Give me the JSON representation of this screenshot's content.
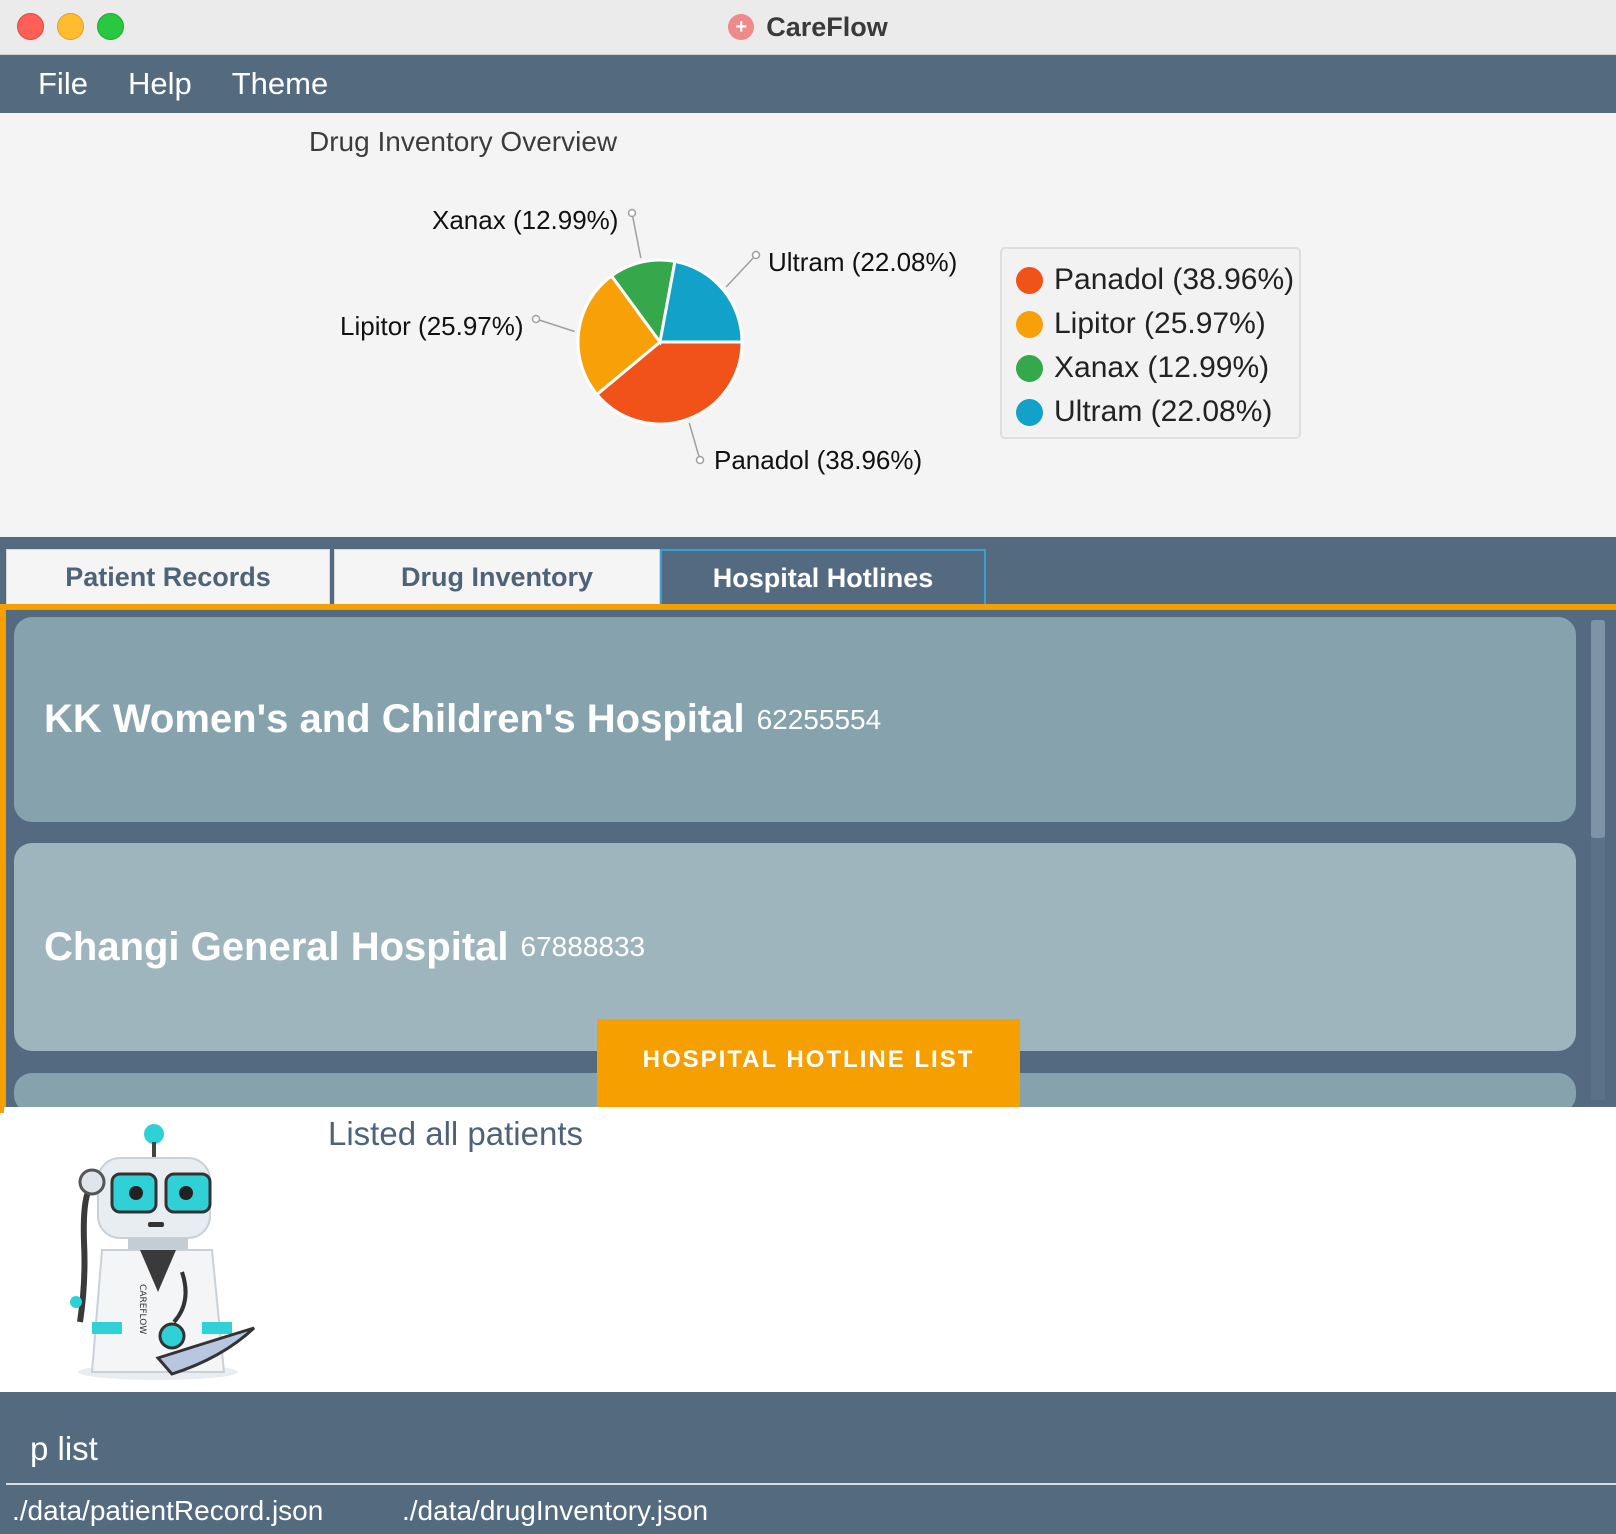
{
  "window": {
    "title": "CareFlow",
    "controls": [
      "close",
      "minimize",
      "maximize"
    ]
  },
  "menu": {
    "items": [
      "File",
      "Help",
      "Theme"
    ]
  },
  "chart_data": {
    "type": "pie",
    "title": "Drug Inventory Overview",
    "categories": [
      "Panadol",
      "Lipitor",
      "Xanax",
      "Ultram"
    ],
    "values": [
      38.96,
      25.97,
      12.99,
      22.08
    ],
    "unit": "%",
    "slice_labels": [
      "Panadol (38.96%)",
      "Lipitor (25.97%)",
      "Xanax (12.99%)",
      "Ultram (22.08%)"
    ],
    "colors": [
      "#f0521a",
      "#f8a008",
      "#34a84a",
      "#12a2c9"
    ],
    "legend": {
      "placement": "right",
      "entries": [
        "Panadol (38.96%)",
        "Lipitor (25.97%)",
        "Xanax (12.99%)",
        "Ultram (22.08%)"
      ]
    }
  },
  "tabs": [
    {
      "label": "Patient Records",
      "active": false
    },
    {
      "label": "Drug Inventory",
      "active": false
    },
    {
      "label": "Hospital Hotlines",
      "active": true
    }
  ],
  "hotlines": {
    "list_label": "HOSPITAL HOTLINE LIST",
    "items": [
      {
        "name": "KK Women's and Children's Hospital",
        "phone": "62255554"
      },
      {
        "name": "Changi General Hospital",
        "phone": "67888833"
      }
    ]
  },
  "result": {
    "message": "Listed all patients"
  },
  "command": {
    "value": "p list"
  },
  "status": {
    "patient_file": "./data/patientRecord.json",
    "drug_file": "./data/drugInventory.json"
  },
  "colors": {
    "accent": "#f5a000",
    "primary": "#546a7f",
    "card_1": "#85a2ad",
    "card_2": "#9eb5be",
    "tab_active_border": "#39a0d6"
  },
  "icons": {
    "app": "medical-cross-icon",
    "mascot": "robot-doctor-mascot"
  }
}
